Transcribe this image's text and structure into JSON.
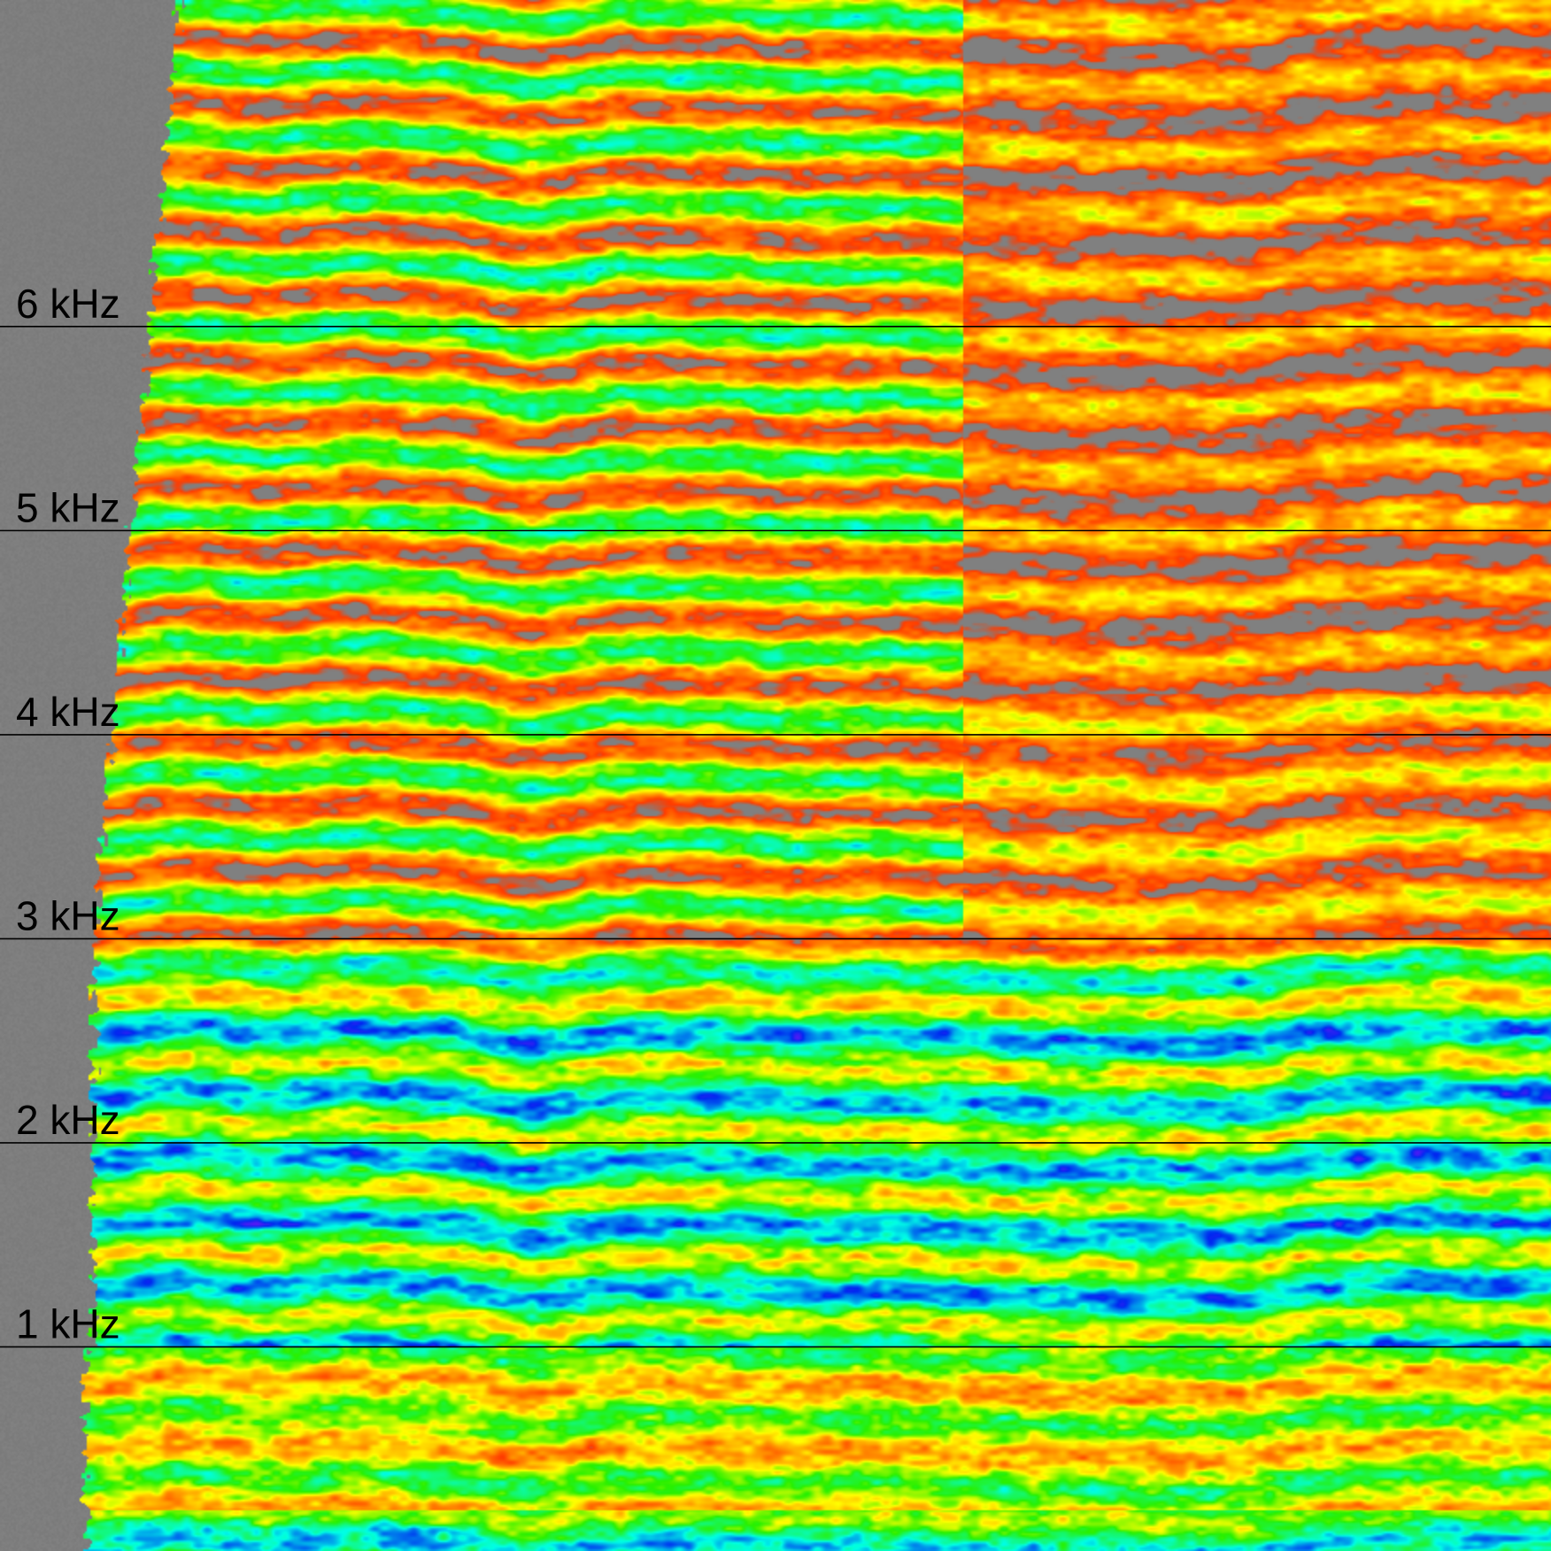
{
  "chart_data": {
    "type": "heatmap",
    "title": "",
    "xlabel": "",
    "ylabel": "",
    "yunit": "kHz",
    "ylim": [
      0,
      7.6
    ],
    "y_ticks": [
      {
        "value": 1,
        "label": "1 kHz"
      },
      {
        "value": 2,
        "label": "2 kHz"
      },
      {
        "value": 3,
        "label": "3 kHz"
      },
      {
        "value": 4,
        "label": "4 kHz"
      },
      {
        "value": 5,
        "label": "5 kHz"
      },
      {
        "value": 6,
        "label": "6 kHz"
      }
    ],
    "gridlines": "horizontal at each tick",
    "colormap": [
      "#808080",
      "#ff3300",
      "#ff8800",
      "#ffff00",
      "#00ff00",
      "#00ffff",
      "#0000ff",
      "#ff00ff"
    ],
    "background_color": "#808080",
    "gridline_color": "#000000",
    "regions": [
      {
        "segment": "early",
        "freq_khz": [
          3.0,
          7.6
        ],
        "level": "harmonic stripes, yellow/green"
      },
      {
        "segment": "late",
        "freq_khz": [
          3.0,
          7.6
        ],
        "level": "sparse, mostly orange/grey"
      },
      {
        "segment": "all",
        "freq_khz": [
          1.0,
          3.0
        ],
        "level": "strong, green/cyan/blue"
      },
      {
        "segment": "all",
        "freq_khz": [
          0.0,
          1.0
        ],
        "level": "moderate, yellow/green"
      }
    ]
  }
}
